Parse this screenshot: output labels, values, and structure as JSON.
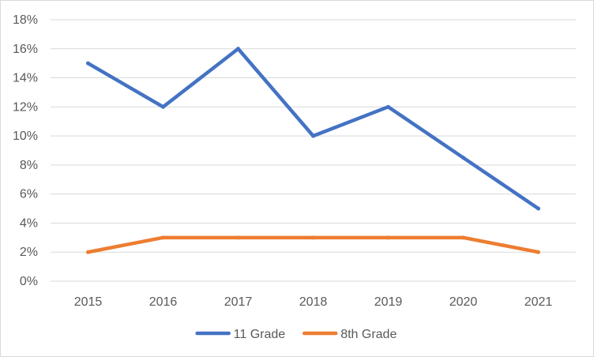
{
  "chart_data": {
    "type": "line",
    "categories": [
      "2015",
      "2016",
      "2017",
      "2018",
      "2019",
      "2020",
      "2021"
    ],
    "series": [
      {
        "name": "11 Grade",
        "color": "#4472c4",
        "values": [
          15,
          12,
          16,
          10,
          12,
          8.5,
          5
        ]
      },
      {
        "name": "8th Grade",
        "color": "#ed7d31",
        "values": [
          2,
          3,
          3,
          3,
          3,
          3,
          2
        ]
      }
    ],
    "y_ticks": [
      "0%",
      "2%",
      "4%",
      "6%",
      "8%",
      "10%",
      "12%",
      "14%",
      "16%",
      "18%"
    ],
    "ylim": [
      0,
      18
    ],
    "ytick_step": 2,
    "grid": true,
    "legend_position": "bottom",
    "title": "",
    "xlabel": "",
    "ylabel": ""
  }
}
